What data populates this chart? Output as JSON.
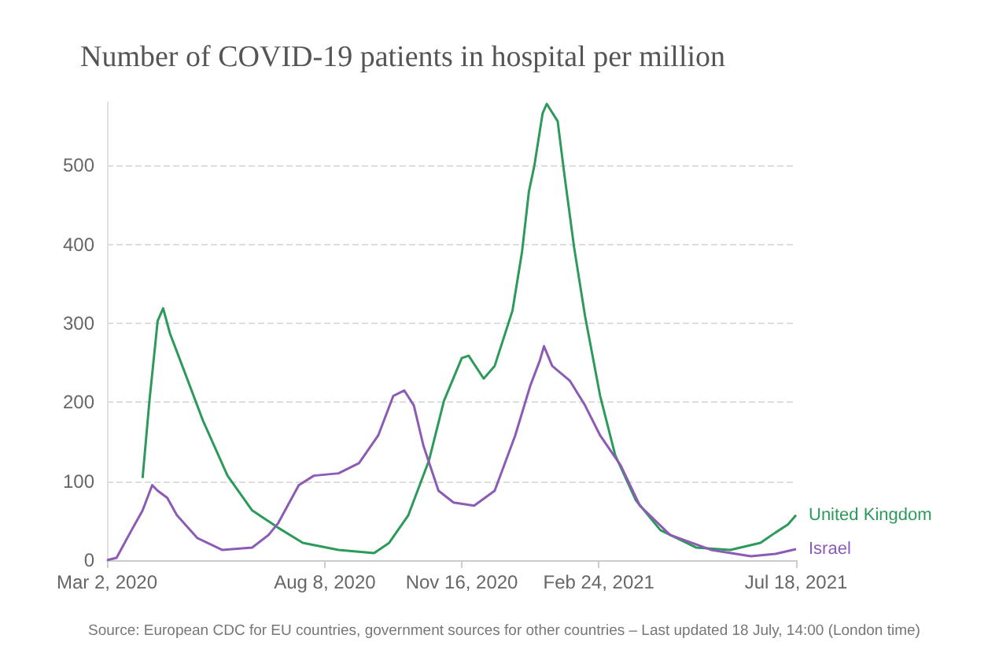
{
  "chart_data": {
    "type": "line",
    "title": "Number of COVID-19 patients in hospital per million",
    "annotations": [
      "Source: European CDC for EU countries, government sources for other countries – Last updated 18 July, 14:00 (London time)"
    ],
    "ylim": [
      0,
      580
    ],
    "yticks": [
      0,
      100,
      200,
      300,
      400,
      500
    ],
    "xlim": [
      "2020-03-02",
      "2021-07-18"
    ],
    "xticks": [
      {
        "value": "2020-03-02",
        "label": "Mar 2, 2020"
      },
      {
        "value": "2020-08-08",
        "label": "Aug 8, 2020"
      },
      {
        "value": "2020-11-16",
        "label": "Nov 16, 2020"
      },
      {
        "value": "2021-02-24",
        "label": "Feb 24, 2021"
      },
      {
        "value": "2021-07-18",
        "label": "Jul 18, 2021"
      }
    ],
    "grid": "y",
    "marker": "none",
    "line_style": "solid",
    "series": [
      {
        "name": "United Kingdom",
        "color": "#2c9a5a",
        "x": [
          "2020-03-28",
          "2020-04-02",
          "2020-04-08",
          "2020-04-12",
          "2020-04-17",
          "2020-04-26",
          "2020-05-11",
          "2020-05-29",
          "2020-06-16",
          "2020-07-05",
          "2020-07-23",
          "2020-08-18",
          "2020-09-13",
          "2020-09-24",
          "2020-10-08",
          "2020-10-23",
          "2020-11-03",
          "2020-11-16",
          "2020-11-21",
          "2020-12-02",
          "2020-12-10",
          "2020-12-23",
          "2020-12-30",
          "2021-01-04",
          "2021-01-08",
          "2021-01-14",
          "2021-01-17",
          "2021-01-25",
          "2021-01-30",
          "2021-02-06",
          "2021-02-14",
          "2021-02-25",
          "2021-03-08",
          "2021-03-23",
          "2021-04-10",
          "2021-05-06",
          "2021-05-31",
          "2021-06-22",
          "2021-07-03",
          "2021-07-12",
          "2021-07-18"
        ],
        "values": [
          104,
          202,
          303,
          319,
          287,
          246,
          177,
          107,
          63,
          41,
          22,
          13,
          9,
          22,
          57,
          126,
          202,
          256,
          259,
          230,
          246,
          316,
          391,
          467,
          500,
          566,
          578,
          556,
          487,
          396,
          309,
          208,
          133,
          76,
          38,
          16,
          13,
          22,
          35,
          45,
          57
        ]
      },
      {
        "name": "Israel",
        "color": "#8c5bb5",
        "x": [
          "2020-03-02",
          "2020-03-09",
          "2020-03-19",
          "2020-03-28",
          "2020-04-04",
          "2020-04-08",
          "2020-04-15",
          "2020-04-22",
          "2020-05-07",
          "2020-05-25",
          "2020-06-16",
          "2020-06-28",
          "2020-07-05",
          "2020-07-20",
          "2020-07-31",
          "2020-08-18",
          "2020-09-02",
          "2020-09-16",
          "2020-09-27",
          "2020-10-05",
          "2020-10-12",
          "2020-10-19",
          "2020-10-30",
          "2020-11-10",
          "2020-11-25",
          "2020-12-10",
          "2020-12-25",
          "2021-01-05",
          "2021-01-12",
          "2021-01-15",
          "2021-01-21",
          "2021-02-03",
          "2021-02-14",
          "2021-02-25",
          "2021-03-12",
          "2021-03-26",
          "2021-04-17",
          "2021-05-17",
          "2021-06-15",
          "2021-07-03",
          "2021-07-18"
        ],
        "values": [
          0,
          3,
          35,
          63,
          95,
          88,
          79,
          57,
          28,
          13,
          16,
          32,
          47,
          95,
          107,
          110,
          123,
          158,
          208,
          215,
          196,
          145,
          88,
          73,
          69,
          88,
          158,
          221,
          253,
          271,
          246,
          227,
          196,
          158,
          120,
          69,
          32,
          13,
          5,
          8,
          14
        ]
      }
    ]
  }
}
